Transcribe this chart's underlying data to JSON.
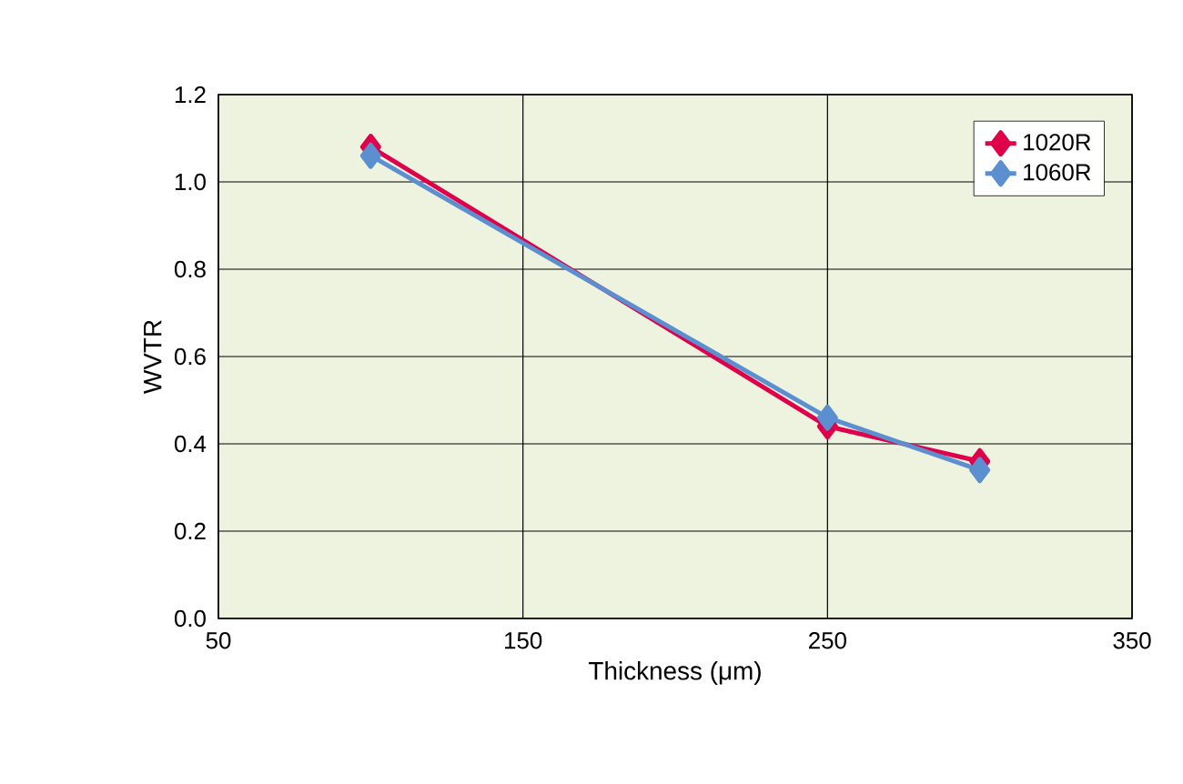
{
  "chart_data": {
    "type": "line",
    "xlabel": "Thickness (μm)",
    "ylabel": "WVTR",
    "xlim": [
      50,
      350
    ],
    "xticks": [
      50,
      150,
      250,
      350
    ],
    "ylim": [
      0,
      1.2
    ],
    "yticks": [
      {
        "value": 0,
        "label": "0.0"
      },
      {
        "value": 0.2,
        "label": "0.2"
      },
      {
        "value": 0.4,
        "label": "0.4"
      },
      {
        "value": 0.6,
        "label": "0.6"
      },
      {
        "value": 0.8,
        "label": "0.8"
      },
      {
        "value": 1.0,
        "label": "1.0"
      },
      {
        "value": 1.2,
        "label": "1.2"
      }
    ],
    "x": [
      100,
      250,
      300
    ],
    "series": [
      {
        "name": "1020R",
        "color": "#e0004a",
        "values": [
          1.08,
          0.44,
          0.36
        ]
      },
      {
        "name": "1060R",
        "color": "#5b8fd0",
        "values": [
          1.06,
          0.46,
          0.34
        ]
      }
    ],
    "grid": true,
    "legend": "top right",
    "marker": "diamond",
    "line_style": "solid"
  }
}
